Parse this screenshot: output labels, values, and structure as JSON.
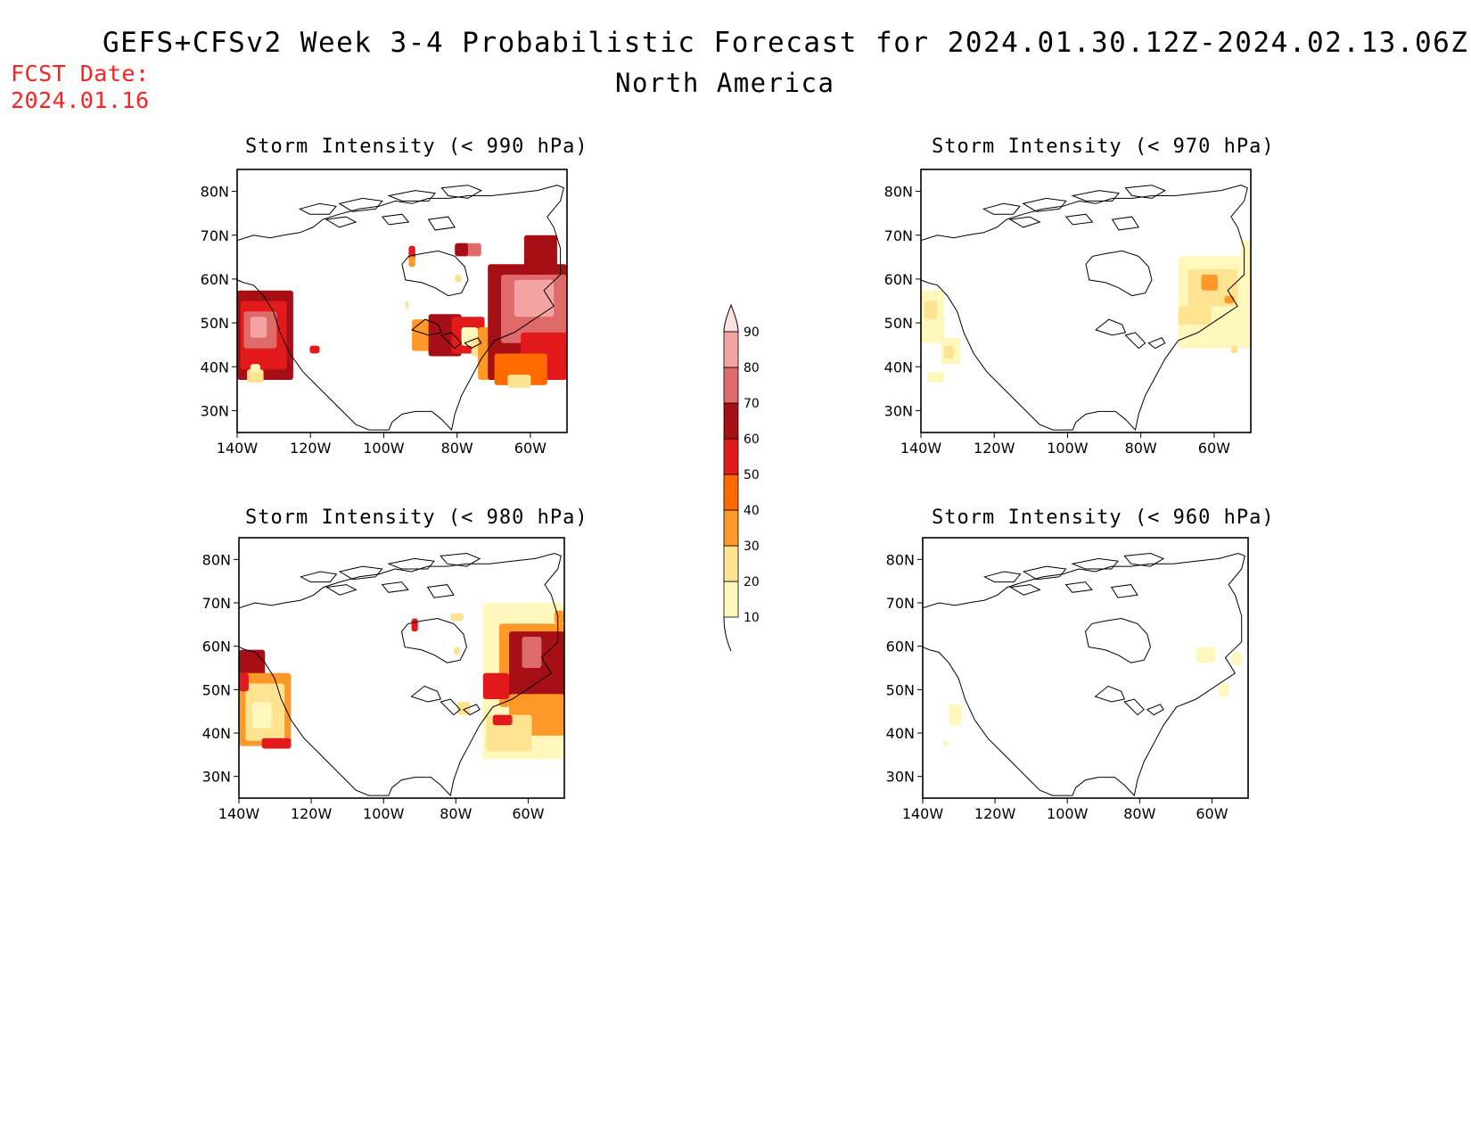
{
  "title": "GEFS+CFSv2 Week 3-4 Probabilistic Forecast for 2024.01.30.12Z-2024.02.13.06Z",
  "subtitle": "North America",
  "fcst_label": "FCST Date:",
  "fcst_date": "2024.01.16",
  "panels": [
    {
      "title": "Storm Intensity (< 990 hPa)",
      "threshold": 990
    },
    {
      "title": "Storm Intensity (< 970 hPa)",
      "threshold": 970
    },
    {
      "title": "Storm Intensity (< 980 hPa)",
      "threshold": 980
    },
    {
      "title": "Storm Intensity (< 960 hPa)",
      "threshold": 960
    }
  ],
  "axes": {
    "lat_ticks": [
      "80N",
      "70N",
      "60N",
      "50N",
      "40N",
      "30N"
    ],
    "lon_ticks": [
      "140W",
      "120W",
      "100W",
      "80W",
      "60W"
    ],
    "lon_range": [
      -140,
      -50
    ],
    "lat_range": [
      25,
      85
    ]
  },
  "colorbar": {
    "levels": [
      "10",
      "20",
      "30",
      "40",
      "50",
      "60",
      "70",
      "80",
      "90"
    ],
    "colors": [
      "#fff7bc",
      "#fee391",
      "#fe9929",
      "#ff6a00",
      "#e31a1c",
      "#a50f15",
      "#de6a6a",
      "#f4a3a3",
      "#fde0e0"
    ]
  },
  "map_colors": {
    "light_yellow": "#fff7bc",
    "yellow": "#fee391",
    "orange": "#fe9929",
    "dark_orange": "#ff6a00",
    "red": "#e31a1c",
    "dark_red": "#a50f15",
    "rose": "#de6a6a",
    "pink": "#f4a3a3"
  }
}
